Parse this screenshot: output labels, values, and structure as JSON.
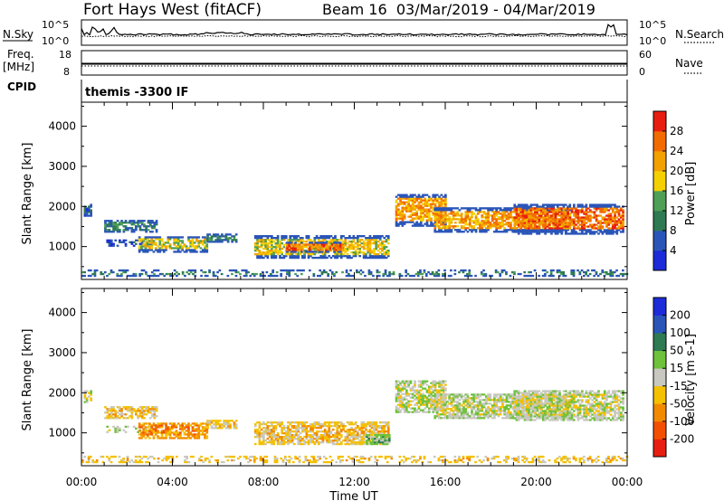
{
  "header": {
    "title": "Fort Hays West (fitACF)",
    "subtitle": "Beam 16  03/Mar/2019 - 04/Mar/2019"
  },
  "sky_strip": {
    "left_label": "N.Sky",
    "right_label": "N.Search",
    "tick_hi": "10^5",
    "tick_lo": "10^0"
  },
  "freq_strip": {
    "left_label": "Freq.",
    "left_unit": "[MHz]",
    "tick_hi": "18",
    "tick_lo": "8",
    "right_label": "Nave",
    "right_tick_hi": "60",
    "right_tick_lo": "0"
  },
  "cpid": {
    "label": "CPID",
    "value": "themis -3300 IF"
  },
  "time_axis": {
    "label": "Time UT",
    "ticks": [
      "00:00",
      "04:00",
      "08:00",
      "12:00",
      "16:00",
      "20:00",
      "00:00"
    ]
  },
  "chart_data": [
    {
      "type": "heatmap",
      "panel": "power",
      "ylabel": "Slant Range [km]",
      "ylim": [
        180,
        4600
      ],
      "yticks": [
        "1000",
        "2000",
        "3000",
        "4000"
      ],
      "xlim_hours": [
        0,
        24
      ],
      "colorbar": {
        "label": "Power [dB]",
        "ticks": [
          "4",
          "8",
          "12",
          "16",
          "20",
          "24",
          "28"
        ],
        "colors": [
          "#1d2bd9",
          "#2a55b8",
          "#2e7a52",
          "#4f9f56",
          "#f5d000",
          "#f2a100",
          "#f26b00",
          "#e81e10"
        ]
      },
      "echo_regions": [
        {
          "t0": 0.1,
          "t1": 0.4,
          "r0": 1750,
          "r1": 2050,
          "level": 1
        },
        {
          "t0": 1.0,
          "t1": 3.3,
          "r0": 1350,
          "r1": 1650,
          "level": 2
        },
        {
          "t0": 1.0,
          "t1": 3.0,
          "r0": 1000,
          "r1": 1150,
          "level": 1
        },
        {
          "t0": 2.5,
          "t1": 5.5,
          "r0": 850,
          "r1": 1250,
          "level": 4
        },
        {
          "t0": 5.5,
          "t1": 6.8,
          "r0": 1100,
          "r1": 1300,
          "level": 2
        },
        {
          "t0": 7.6,
          "t1": 13.5,
          "r0": 700,
          "r1": 1250,
          "level": 4
        },
        {
          "t0": 9.0,
          "t1": 11.5,
          "r0": 850,
          "r1": 1100,
          "level": 6
        },
        {
          "t0": 13.8,
          "t1": 16.0,
          "r0": 1500,
          "r1": 2300,
          "level": 5
        },
        {
          "t0": 15.5,
          "t1": 21.5,
          "r0": 1350,
          "r1": 1950,
          "level": 5
        },
        {
          "t0": 19.0,
          "t1": 23.8,
          "r0": 1300,
          "r1": 2050,
          "level": 6
        },
        {
          "t0": 0.0,
          "t1": 24.0,
          "r0": 250,
          "r1": 400,
          "level": 2
        }
      ]
    },
    {
      "type": "heatmap",
      "panel": "velocity",
      "ylabel": "Slant Range [km]",
      "ylim": [
        180,
        4600
      ],
      "yticks": [
        "1000",
        "2000",
        "3000",
        "4000"
      ],
      "xlim_hours": [
        0,
        24
      ],
      "colorbar": {
        "label": "Velocity [m s-1]",
        "ticks": [
          "200",
          "100",
          "50",
          "15",
          "-15",
          "-50",
          "-100",
          "-200"
        ],
        "colors": [
          "#1d2bd9",
          "#2a55b8",
          "#2e7a52",
          "#6ec23c",
          "#c8c8c0",
          "#f5c000",
          "#f28a00",
          "#f25000",
          "#e81e10"
        ]
      },
      "echo_regions": [
        {
          "t0": 0.1,
          "t1": 0.4,
          "r0": 1750,
          "r1": 2050,
          "level": 4
        },
        {
          "t0": 1.0,
          "t1": 3.3,
          "r0": 1350,
          "r1": 1650,
          "level": 5
        },
        {
          "t0": 1.0,
          "t1": 3.0,
          "r0": 1000,
          "r1": 1150,
          "level": 4
        },
        {
          "t0": 2.5,
          "t1": 5.5,
          "r0": 850,
          "r1": 1250,
          "level": 6
        },
        {
          "t0": 5.5,
          "t1": 6.8,
          "r0": 1100,
          "r1": 1300,
          "level": 5
        },
        {
          "t0": 7.6,
          "t1": 13.5,
          "r0": 700,
          "r1": 1250,
          "level": 5
        },
        {
          "t0": 12.5,
          "t1": 13.5,
          "r0": 700,
          "r1": 950,
          "level": 3
        },
        {
          "t0": 13.8,
          "t1": 16.0,
          "r0": 1500,
          "r1": 2300,
          "level": 4
        },
        {
          "t0": 15.5,
          "t1": 21.5,
          "r0": 1350,
          "r1": 1950,
          "level": 4
        },
        {
          "t0": 19.0,
          "t1": 23.8,
          "r0": 1300,
          "r1": 2050,
          "level": 4
        },
        {
          "t0": 0.0,
          "t1": 24.0,
          "r0": 250,
          "r1": 400,
          "level": 5
        }
      ]
    }
  ]
}
